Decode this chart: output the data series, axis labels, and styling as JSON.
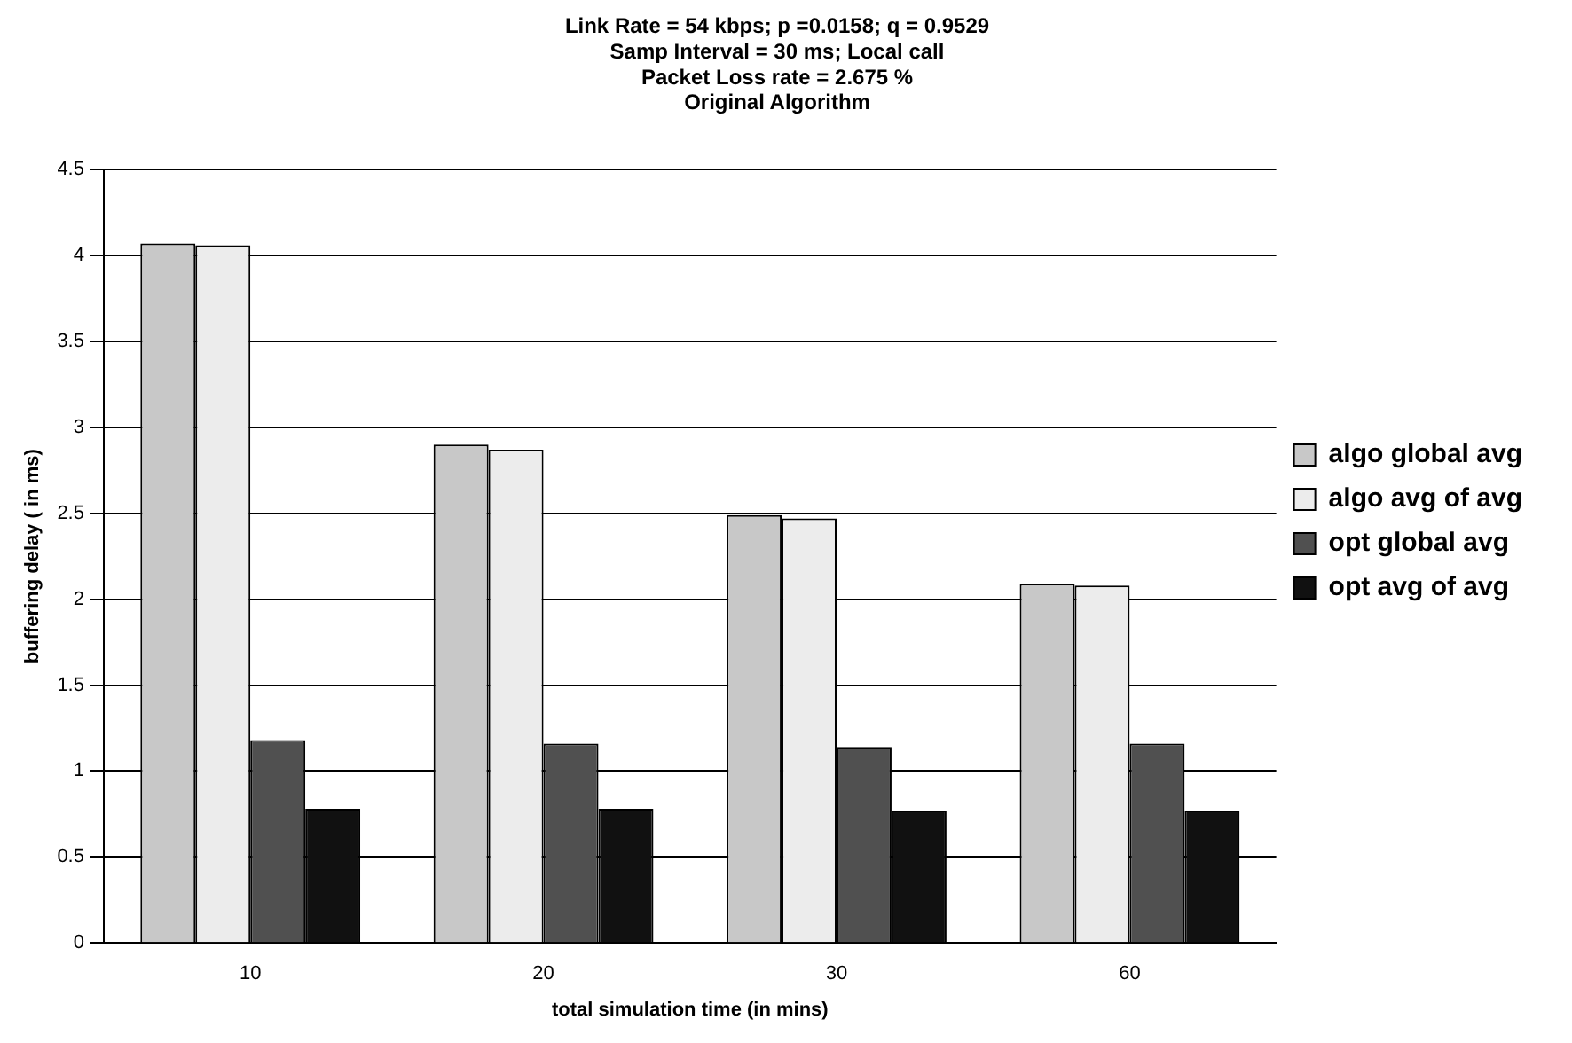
{
  "chart_data": {
    "type": "bar",
    "title": "Link Rate = 54 kbps; p =0.0158; q = 0.9529\nSamp Interval = 30 ms; Local call\nPacket Loss rate = 2.675 %\nOriginal Algorithm",
    "xlabel": "total simulation time (in mins)",
    "ylabel": "buffering delay ( in ms)",
    "categories": [
      "10",
      "20",
      "30",
      "60"
    ],
    "series": [
      {
        "name": "algo global avg",
        "color": "#c8c8c8",
        "values": [
          4.07,
          2.9,
          2.49,
          2.09
        ]
      },
      {
        "name": "algo avg of avg",
        "color": "#ececec",
        "values": [
          4.06,
          2.87,
          2.47,
          2.08
        ]
      },
      {
        "name": "opt global avg",
        "color": "#505050",
        "values": [
          1.18,
          1.16,
          1.14,
          1.16
        ]
      },
      {
        "name": "opt avg of avg",
        "color": "#111111",
        "values": [
          0.78,
          0.78,
          0.77,
          0.77
        ]
      }
    ],
    "ylim": [
      0,
      4.5
    ],
    "yticks": [
      0,
      0.5,
      1,
      1.5,
      2,
      2.5,
      3,
      3.5,
      4,
      4.5
    ],
    "grid": "y",
    "legend": "right"
  }
}
